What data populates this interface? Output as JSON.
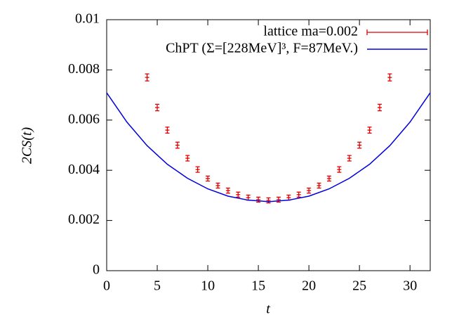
{
  "chart_data": {
    "type": "line",
    "x_label": "t",
    "y_label": "2CS(t)",
    "xlim": [
      0,
      32
    ],
    "xticks": [
      0,
      5,
      10,
      15,
      20,
      25,
      30
    ],
    "ylim": [
      0,
      0.01
    ],
    "yticks": [
      0,
      0.002,
      0.004,
      0.006,
      0.008,
      0.01
    ],
    "legend": "top-right",
    "series": [
      {
        "name": "lattice ma=0.002",
        "type": "errorbar",
        "color": "#e00000",
        "x": [
          4,
          5,
          6,
          7,
          8,
          9,
          10,
          11,
          12,
          13,
          14,
          15,
          16,
          17,
          18,
          19,
          20,
          21,
          22,
          23,
          24,
          25,
          26,
          27,
          28
        ],
        "values": [
          0.0077,
          0.0065,
          0.0056,
          0.005,
          0.00448,
          0.00403,
          0.00367,
          0.00339,
          0.00319,
          0.00303,
          0.00291,
          0.00283,
          0.0028,
          0.00283,
          0.00291,
          0.00303,
          0.00319,
          0.00339,
          0.00367,
          0.00403,
          0.00448,
          0.005,
          0.0056,
          0.0065,
          0.0077
        ],
        "errors": [
          0.00014,
          0.00013,
          0.00012,
          0.00012,
          0.00011,
          0.00011,
          0.0001,
          0.0001,
          0.0001,
          0.0001,
          0.0001,
          0.0001,
          0.0001,
          0.0001,
          0.0001,
          0.0001,
          0.0001,
          0.0001,
          0.0001,
          0.00011,
          0.00011,
          0.00012,
          0.00012,
          0.00013,
          0.00014
        ]
      },
      {
        "name": "ChPT (Σ=[228MeV]³, F=87MeV.)",
        "type": "line",
        "color": "#0000e0",
        "x": [
          0,
          2,
          4,
          6,
          8,
          10,
          12,
          14,
          16,
          18,
          20,
          22,
          24,
          26,
          28,
          30,
          32
        ],
        "values": [
          0.00709,
          0.00592,
          0.00498,
          0.00424,
          0.00368,
          0.00326,
          0.00297,
          0.00281,
          0.00275,
          0.00281,
          0.00297,
          0.00326,
          0.00368,
          0.00424,
          0.00498,
          0.00592,
          0.00709
        ]
      }
    ]
  }
}
